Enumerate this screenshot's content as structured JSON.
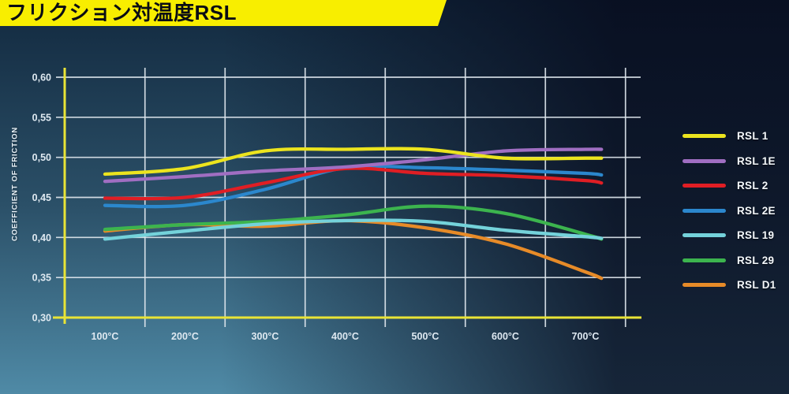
{
  "banner": {
    "title": "フリクション対温度RSL",
    "bg_color": "#f8ee00",
    "text_color": "#0a0d14"
  },
  "colors": {
    "axis_yellow": "#e9e436",
    "gridline": "#dde5ec",
    "tick_text": "#dfe9f1"
  },
  "chart_data": {
    "type": "line",
    "title": "フリクション対温度RSL",
    "xlabel": "",
    "ylabel": "COEFFICIENT OF FRICTION",
    "x_unit": "°C",
    "x_ticks": [
      100,
      200,
      300,
      400,
      500,
      600,
      700
    ],
    "x_tick_labels": [
      "100°C",
      "200°C",
      "300°C",
      "400°C",
      "500°C",
      "600°C",
      "700°C"
    ],
    "y_ticks": [
      0.3,
      0.35,
      0.4,
      0.45,
      0.5,
      0.55,
      0.6
    ],
    "y_tick_labels": [
      "0,30",
      "0,35",
      "0,40",
      "0,45",
      "0,50",
      "0,55",
      "0,60"
    ],
    "xlim": [
      50,
      767
    ],
    "ylim": [
      0.3,
      0.6
    ],
    "grid": true,
    "legend_position": "right",
    "x": [
      100,
      200,
      300,
      400,
      500,
      600,
      700,
      720
    ],
    "series": [
      {
        "name": "RSL 1",
        "color": "#ece41e",
        "values": [
          0.479,
          0.486,
          0.508,
          0.51,
          0.51,
          0.499,
          0.499,
          0.499
        ]
      },
      {
        "name": "RSL 1E",
        "color": "#a06ec2",
        "values": [
          0.47,
          0.476,
          0.483,
          0.488,
          0.497,
          0.508,
          0.51,
          0.51
        ]
      },
      {
        "name": "RSL 2",
        "color": "#e01e24",
        "values": [
          0.449,
          0.45,
          0.468,
          0.486,
          0.48,
          0.477,
          0.471,
          0.468
        ]
      },
      {
        "name": "RSL 2E",
        "color": "#2b87cd",
        "values": [
          0.44,
          0.44,
          0.46,
          0.487,
          0.487,
          0.484,
          0.48,
          0.478
        ]
      },
      {
        "name": "RSL 19",
        "color": "#74d2da",
        "values": [
          0.398,
          0.408,
          0.417,
          0.421,
          0.42,
          0.409,
          0.401,
          0.399
        ]
      },
      {
        "name": "RSL 29",
        "color": "#3cb44e",
        "values": [
          0.41,
          0.416,
          0.42,
          0.428,
          0.439,
          0.43,
          0.404,
          0.398
        ]
      },
      {
        "name": "RSL D1",
        "color": "#e78b28",
        "values": [
          0.408,
          0.416,
          0.414,
          0.421,
          0.412,
          0.392,
          0.357,
          0.349
        ]
      }
    ]
  }
}
